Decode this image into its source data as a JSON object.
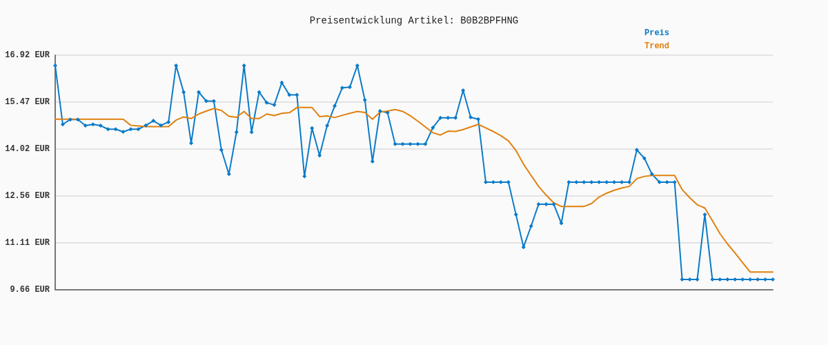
{
  "chart_data": {
    "type": "line",
    "title": "Preisentwicklung Artikel: B0B2BPFHNG",
    "categories": [
      null,
      null,
      null,
      null,
      null,
      null,
      null,
      null,
      null,
      null,
      null,
      null,
      null,
      null,
      null,
      null,
      null,
      null,
      null,
      null,
      null,
      null,
      null,
      null,
      null,
      null,
      null,
      null,
      null,
      null,
      null,
      null,
      null,
      null,
      null,
      null,
      null,
      null,
      null,
      null,
      null,
      null,
      null,
      null,
      null,
      null,
      null,
      null,
      null,
      null,
      null,
      null,
      null,
      null,
      null,
      null,
      null,
      null,
      null,
      null,
      null,
      null,
      null,
      null,
      null,
      null,
      null,
      null,
      null,
      null,
      null,
      null,
      null,
      null,
      null,
      null,
      null,
      null,
      null,
      null,
      null,
      null,
      null,
      null,
      null,
      null,
      null,
      null,
      null,
      null,
      null,
      null,
      null,
      null,
      null,
      null
    ],
    "series": [
      {
        "name": "Preis",
        "color": "#0a7bc8",
        "marker": "diamond",
        "values": [
          16.6,
          14.78,
          14.93,
          14.93,
          14.74,
          14.78,
          14.74,
          14.63,
          14.63,
          14.55,
          14.63,
          14.63,
          14.75,
          14.89,
          14.75,
          14.85,
          16.6,
          15.78,
          14.2,
          15.78,
          15.5,
          15.5,
          13.99,
          13.24,
          14.54,
          16.6,
          14.54,
          15.78,
          15.45,
          15.38,
          16.07,
          15.69,
          15.69,
          13.17,
          14.66,
          13.82,
          14.74,
          15.35,
          15.91,
          15.93,
          16.6,
          15.53,
          13.63,
          15.19,
          15.14,
          14.17,
          14.17,
          14.17,
          14.17,
          14.17,
          14.68,
          14.98,
          14.98,
          14.98,
          15.83,
          15.0,
          14.94,
          12.99,
          12.99,
          12.99,
          12.99,
          11.99,
          10.98,
          11.63,
          12.31,
          12.31,
          12.31,
          11.72,
          12.99,
          12.99,
          12.99,
          12.99,
          12.99,
          12.99,
          12.99,
          12.99,
          12.99,
          13.99,
          13.73,
          13.24,
          12.99,
          12.99,
          12.99,
          9.98,
          9.98,
          9.98,
          11.99,
          9.98,
          9.98,
          9.98,
          9.98,
          9.98,
          9.98,
          9.98,
          9.98,
          9.98
        ]
      },
      {
        "name": "Trend",
        "color": "#e0800e",
        "marker": "none",
        "values": [
          14.94,
          14.94,
          14.94,
          14.94,
          14.94,
          14.94,
          14.94,
          14.94,
          14.94,
          14.94,
          14.75,
          14.73,
          14.71,
          14.71,
          14.71,
          14.71,
          14.91,
          15.01,
          14.96,
          15.1,
          15.19,
          15.27,
          15.21,
          15.03,
          15.0,
          15.18,
          14.96,
          14.96,
          15.1,
          15.05,
          15.12,
          15.14,
          15.3,
          15.3,
          15.3,
          15.02,
          15.04,
          14.99,
          15.06,
          15.12,
          15.18,
          15.15,
          14.94,
          15.16,
          15.19,
          15.24,
          15.18,
          15.05,
          14.88,
          14.7,
          14.52,
          14.45,
          14.57,
          14.56,
          14.62,
          14.7,
          14.78,
          14.67,
          14.56,
          14.43,
          14.27,
          13.97,
          13.55,
          13.2,
          12.86,
          12.59,
          12.35,
          12.24,
          12.24,
          12.24,
          12.24,
          12.33,
          12.53,
          12.65,
          12.74,
          12.81,
          12.86,
          13.1,
          13.17,
          13.2,
          13.2,
          13.2,
          13.2,
          12.76,
          12.51,
          12.29,
          12.19,
          11.8,
          11.4,
          11.08,
          10.8,
          10.5,
          10.21,
          10.21,
          10.21,
          10.21
        ]
      }
    ],
    "ylim": [
      9.66,
      16.92
    ],
    "yticks": [
      {
        "value": 9.66,
        "label": "9.66 EUR"
      },
      {
        "value": 11.11,
        "label": "11.11 EUR"
      },
      {
        "value": 12.56,
        "label": "12.56 EUR"
      },
      {
        "value": 14.02,
        "label": "14.02 EUR"
      },
      {
        "value": 15.47,
        "label": "15.47 EUR"
      },
      {
        "value": 16.92,
        "label": "16.92 EUR"
      }
    ],
    "grid": "y",
    "legend": "top right",
    "tick_labels": "y",
    "line_style": "solid"
  }
}
